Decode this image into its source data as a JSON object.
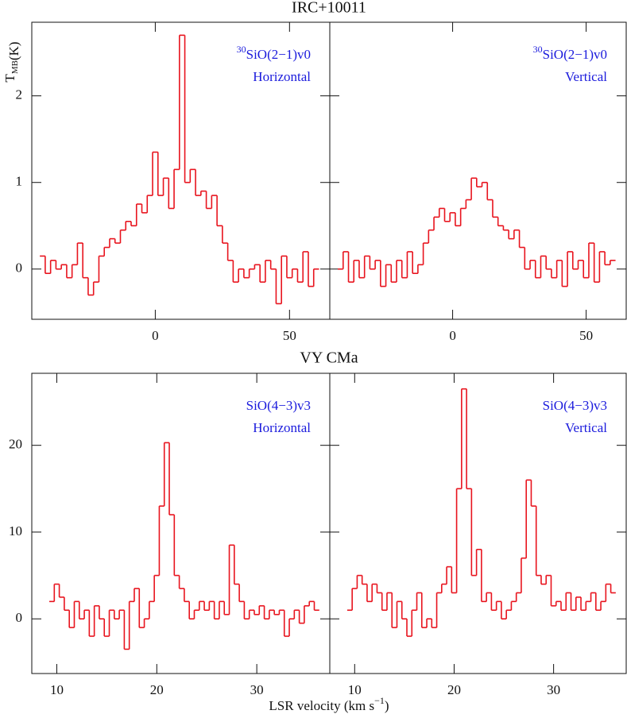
{
  "chart_data": [
    {
      "type": "step",
      "title": "IRC+10011",
      "ylabel": "T",
      "ylabel_sub": "MB",
      "ylabel_unit": "(K)",
      "annotation_sup": "30",
      "annotation": "SiO(2−1)v0",
      "annotation2": "Horizontal",
      "color": "#e8141e",
      "xlim": [
        -46,
        65
      ],
      "xticks": [
        0,
        50
      ],
      "ylim": [
        -0.58,
        2.85
      ],
      "yticks": [
        0,
        1,
        2
      ],
      "ytick_labels": true,
      "x": [
        -42,
        -40,
        -38,
        -36,
        -34,
        -32,
        -30,
        -28,
        -26,
        -24,
        -22,
        -20,
        -18,
        -16,
        -14,
        -12,
        -10,
        -8,
        -6,
        -4,
        -2,
        0,
        2,
        4,
        6,
        8,
        10,
        12,
        14,
        16,
        18,
        20,
        22,
        24,
        26,
        28,
        30,
        32,
        34,
        36,
        38,
        40,
        42,
        44,
        46,
        48,
        50,
        52,
        54,
        56,
        58,
        60
      ],
      "values": [
        0.15,
        -0.05,
        0.1,
        0.0,
        0.05,
        -0.1,
        0.05,
        0.3,
        -0.1,
        -0.3,
        -0.15,
        0.15,
        0.25,
        0.35,
        0.3,
        0.45,
        0.55,
        0.5,
        0.75,
        0.65,
        0.85,
        1.35,
        0.85,
        1.05,
        0.7,
        1.15,
        2.7,
        1.0,
        1.15,
        0.85,
        0.9,
        0.7,
        0.85,
        0.5,
        0.3,
        0.1,
        -0.15,
        0.0,
        -0.1,
        0.0,
        0.05,
        -0.15,
        0.1,
        0.0,
        -0.4,
        0.15,
        -0.1,
        0.0,
        -0.15,
        0.2,
        -0.2,
        0.0
      ]
    },
    {
      "type": "step",
      "annotation_sup": "30",
      "annotation": "SiO(2−1)v0",
      "annotation2": "Vertical",
      "color": "#e8141e",
      "xlim": [
        -46,
        65
      ],
      "xticks": [
        0,
        50
      ],
      "ylim": [
        -0.58,
        2.85
      ],
      "yticks": [
        0,
        1,
        2
      ],
      "ytick_labels": false,
      "x": [
        -42,
        -40,
        -38,
        -36,
        -34,
        -32,
        -30,
        -28,
        -26,
        -24,
        -22,
        -20,
        -18,
        -16,
        -14,
        -12,
        -10,
        -8,
        -6,
        -4,
        -2,
        0,
        2,
        4,
        6,
        8,
        10,
        12,
        14,
        16,
        18,
        20,
        22,
        24,
        26,
        28,
        30,
        32,
        34,
        36,
        38,
        40,
        42,
        44,
        46,
        48,
        50,
        52,
        54,
        56,
        58,
        60
      ],
      "values": [
        0.0,
        0.2,
        -0.15,
        0.1,
        -0.1,
        0.15,
        0.0,
        0.1,
        -0.2,
        0.05,
        -0.15,
        0.1,
        -0.1,
        0.2,
        -0.05,
        0.05,
        0.3,
        0.45,
        0.6,
        0.7,
        0.55,
        0.65,
        0.5,
        0.7,
        0.8,
        1.05,
        0.95,
        1.0,
        0.8,
        0.6,
        0.5,
        0.45,
        0.35,
        0.45,
        0.25,
        0.0,
        0.1,
        -0.1,
        0.15,
        0.0,
        -0.1,
        0.1,
        -0.2,
        0.2,
        0.0,
        0.1,
        -0.1,
        0.3,
        -0.15,
        0.2,
        0.05,
        0.1
      ]
    },
    {
      "type": "step",
      "title": "VY CMa",
      "xlabel": "LSR velocity (km s",
      "xlabel_sup": "−1",
      "xlabel_end": ")",
      "annotation": "SiO(4−3)v3",
      "annotation2": "Horizontal",
      "color": "#e8141e",
      "xlim": [
        7.5,
        37.3
      ],
      "xticks": [
        10,
        20,
        30
      ],
      "ylim": [
        -6.3,
        28.3
      ],
      "yticks": [
        0,
        10,
        20
      ],
      "ytick_labels": true,
      "x": [
        9.5,
        10,
        10.5,
        11,
        11.5,
        12,
        12.5,
        13,
        13.5,
        14,
        14.5,
        15,
        15.5,
        16,
        16.5,
        17,
        17.5,
        18,
        18.5,
        19,
        19.5,
        20,
        20.5,
        21,
        21.5,
        22,
        22.5,
        23,
        23.5,
        24,
        24.5,
        25,
        25.5,
        26,
        26.5,
        27,
        27.5,
        28,
        28.5,
        29,
        29.5,
        30,
        30.5,
        31,
        31.5,
        32,
        32.5,
        33,
        33.5,
        34,
        34.5,
        35,
        35.5,
        36
      ],
      "values": [
        2,
        4,
        2.5,
        1,
        -1,
        2,
        0,
        1,
        -2,
        1.5,
        0,
        -2,
        1,
        0,
        1,
        -3.5,
        2,
        3.5,
        -1,
        0,
        2,
        5,
        13,
        20.3,
        12,
        5,
        3.5,
        2,
        0,
        1,
        2,
        1,
        2,
        0,
        2,
        0.5,
        8.5,
        4,
        2,
        0,
        1,
        0.5,
        1.5,
        0,
        1,
        0.5,
        1,
        -2,
        0,
        1,
        -0.5,
        1.5,
        2,
        1
      ]
    },
    {
      "type": "step",
      "annotation": "SiO(4−3)v3",
      "annotation2": "Vertical",
      "color": "#e8141e",
      "xlim": [
        7.5,
        37.3
      ],
      "xticks": [
        10,
        20,
        30
      ],
      "ylim": [
        -6.3,
        28.3
      ],
      "yticks": [
        0,
        10,
        20
      ],
      "ytick_labels": false,
      "x": [
        9.5,
        10,
        10.5,
        11,
        11.5,
        12,
        12.5,
        13,
        13.5,
        14,
        14.5,
        15,
        15.5,
        16,
        16.5,
        17,
        17.5,
        18,
        18.5,
        19,
        19.5,
        20,
        20.5,
        21,
        21.5,
        22,
        22.5,
        23,
        23.5,
        24,
        24.5,
        25,
        25.5,
        26,
        26.5,
        27,
        27.5,
        28,
        28.5,
        29,
        29.5,
        30,
        30.5,
        31,
        31.5,
        32,
        32.5,
        33,
        33.5,
        34,
        34.5,
        35,
        35.5,
        36
      ],
      "values": [
        1,
        3.5,
        5,
        4,
        2,
        4,
        3,
        1,
        3,
        -1,
        2,
        0,
        -2,
        1,
        3,
        -1,
        0,
        -1,
        3,
        4,
        6,
        3,
        15,
        26.5,
        15,
        5,
        8,
        2,
        3,
        1,
        2,
        0,
        1,
        2,
        3,
        7,
        16,
        13,
        5,
        4,
        5,
        1.5,
        2,
        1,
        3,
        1,
        2.5,
        1,
        2,
        3,
        1,
        2,
        4,
        3
      ]
    }
  ]
}
